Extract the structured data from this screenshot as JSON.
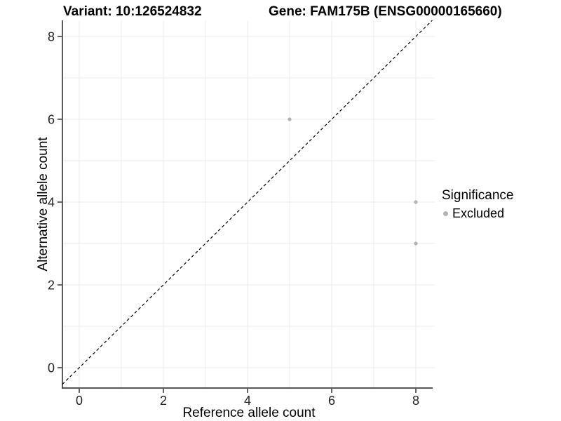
{
  "page": {
    "background": "#ffffff"
  },
  "chart_data": {
    "type": "scatter",
    "title_left": "Variant: 10:126524832",
    "title_right": "Gene: FAM175B (ENSG00000165660)",
    "xlabel": "Reference allele count",
    "ylabel": "Alternative allele count",
    "xlim": [
      -0.4,
      8.45
    ],
    "ylim": [
      -0.5,
      8.4
    ],
    "x_ticks": [
      0,
      2,
      4,
      6,
      8
    ],
    "y_ticks": [
      0,
      2,
      4,
      6,
      8
    ],
    "grid": "on",
    "grid_every": 1,
    "identity_line": {
      "description": "y = x reference line",
      "style": "dashed",
      "color": "#000000"
    },
    "series": [
      {
        "name": "Excluded",
        "marker": "circle",
        "color": "#b3b3b3",
        "points": [
          [
            5,
            6
          ],
          [
            8,
            4
          ],
          [
            8,
            3
          ]
        ]
      }
    ],
    "legend": {
      "title": "Significance",
      "position": "right",
      "items": [
        {
          "label": "Excluded",
          "color": "#b3b3b3"
        }
      ]
    }
  },
  "colors": {
    "axis_line": "#404040",
    "tick_mark": "#333333",
    "tick_label": "#262626",
    "grid_line": "#ebebeb",
    "point": "#b3b3b3",
    "identity_line": "#000000",
    "background": "#ffffff"
  }
}
